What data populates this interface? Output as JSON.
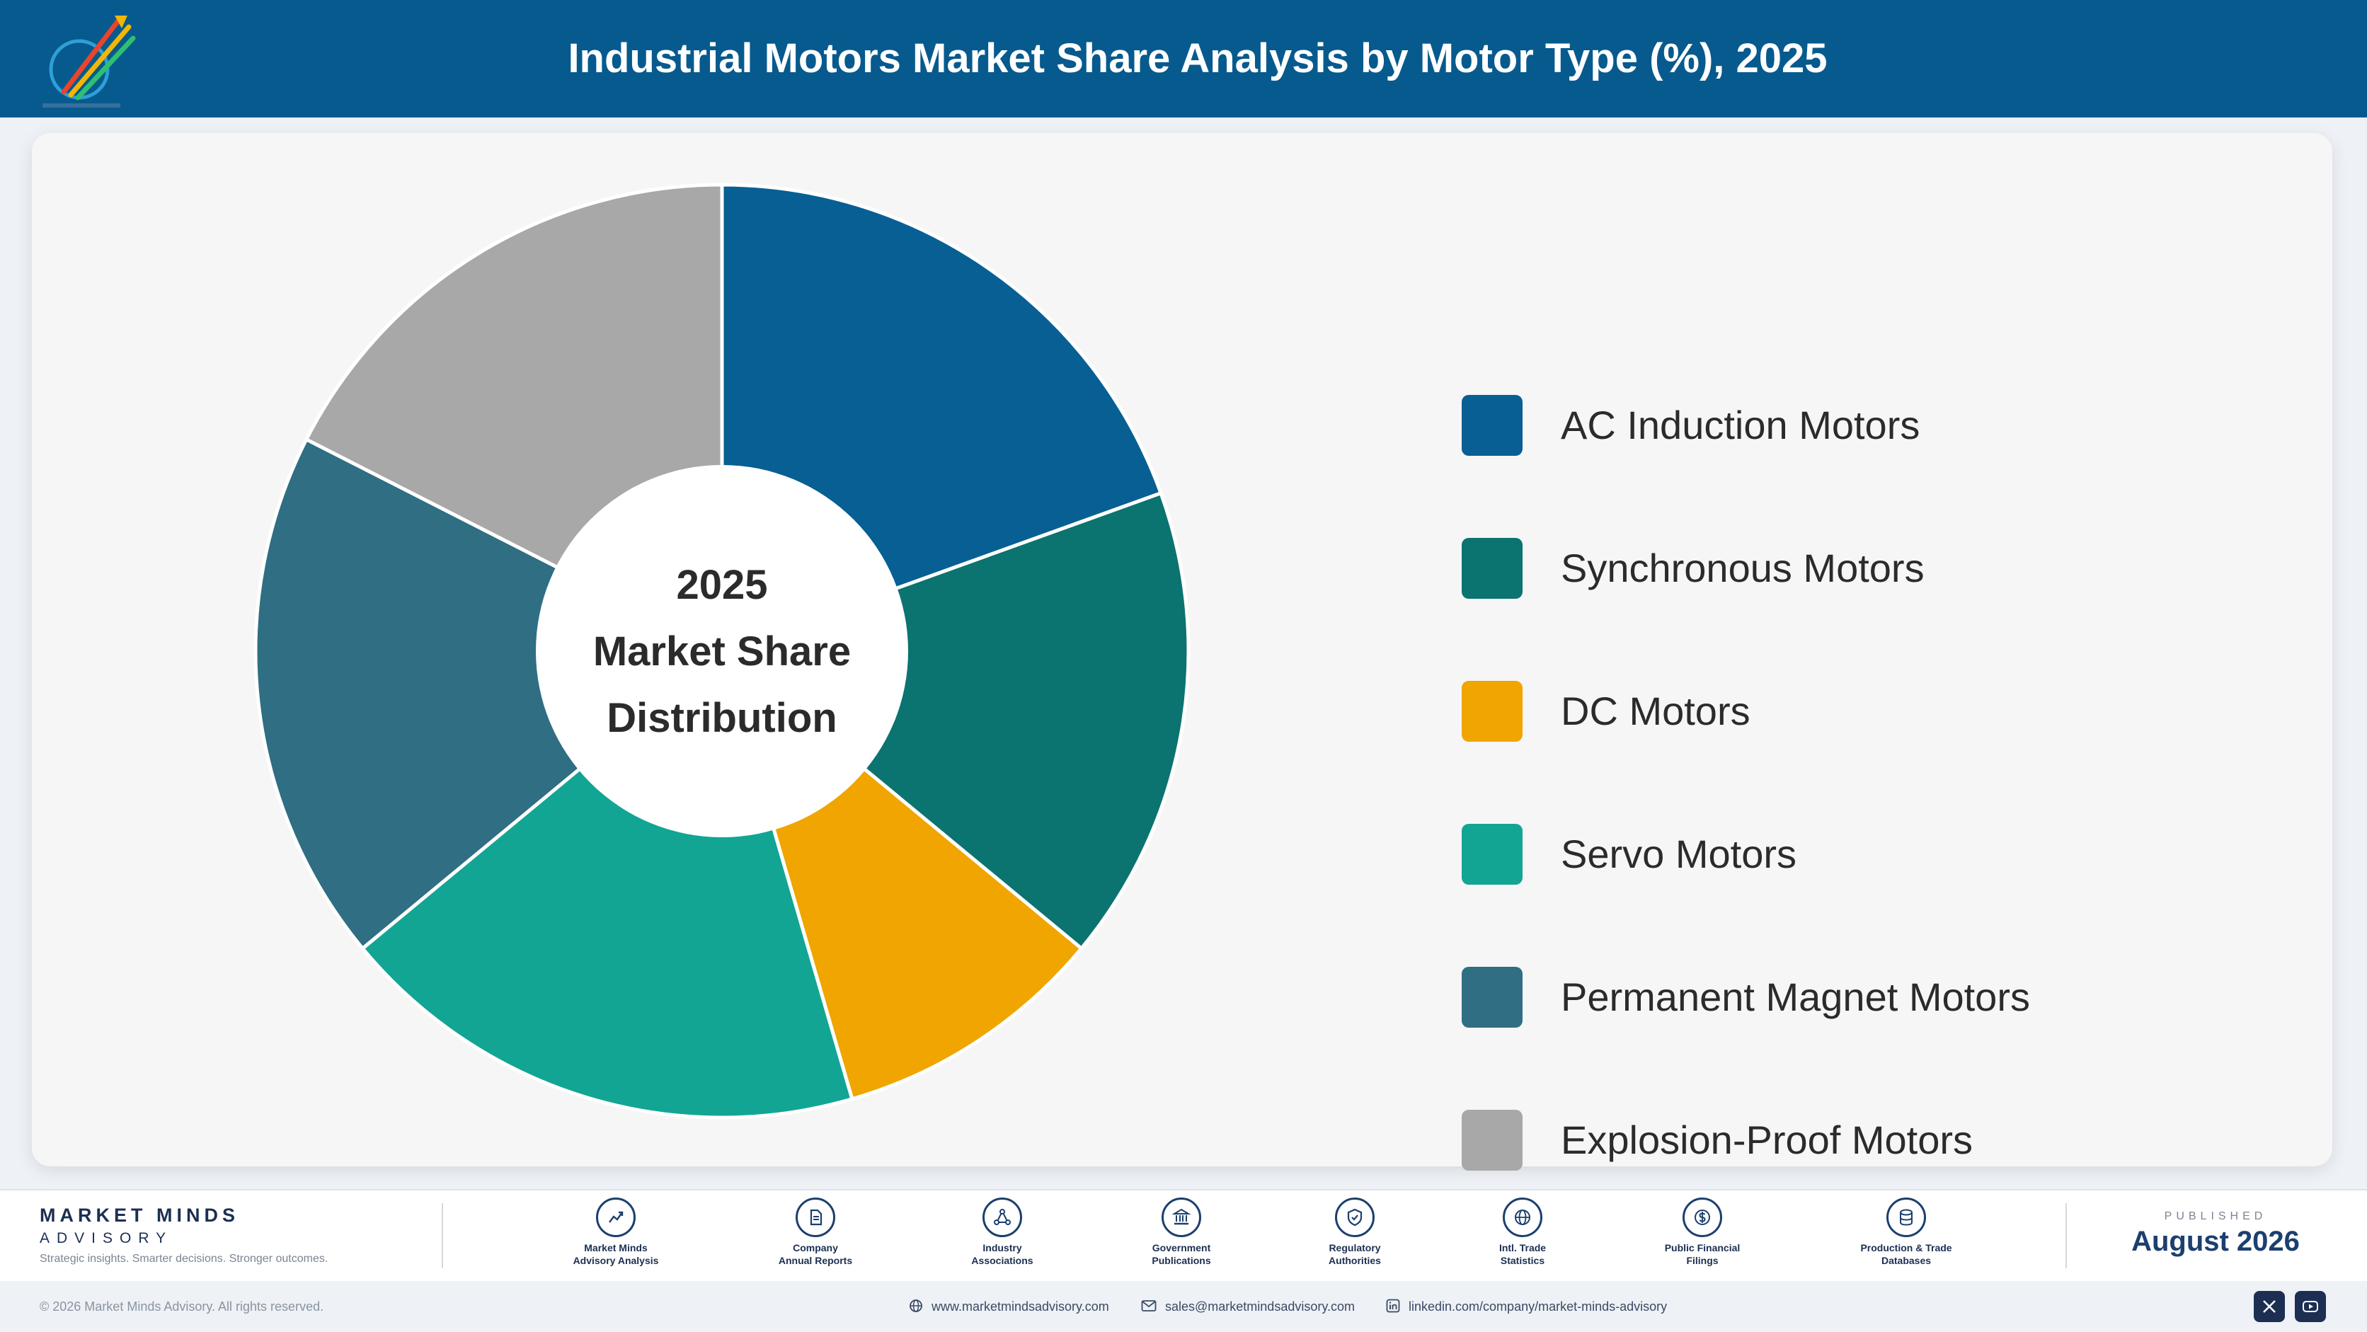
{
  "header": {
    "title": "Industrial Motors Market Share Analysis by Motor Type (%), 2025",
    "logo_icon": "rising-arrows-logo-icon"
  },
  "chart_data": {
    "type": "pie",
    "donut": true,
    "center_label": [
      "2025",
      "Market Share",
      "Distribution"
    ],
    "categories": [
      "AC Induction Motors",
      "Synchronous Motors",
      "DC Motors",
      "Servo Motors",
      "Permanent Magnet Motors",
      "Explosion-Proof Motors"
    ],
    "values": [
      19.5,
      16.5,
      9.5,
      18.5,
      18.5,
      17.5
    ],
    "colors": [
      "#075f94",
      "#0b7370",
      "#f0a500",
      "#12a594",
      "#2f6e83",
      "#a8a8a8"
    ],
    "legend_position": "right"
  },
  "footer": {
    "brand_name": "MARKET MINDS",
    "brand_sub": "ADVISORY",
    "tagline": "Strategic insights. Smarter decisions. Stronger outcomes.",
    "sources": [
      {
        "label": "Market Minds\nAdvisory Analysis",
        "icon": "trend-chart-icon"
      },
      {
        "label": "Company\nAnnual Reports",
        "icon": "document-icon"
      },
      {
        "label": "Industry\nAssociations",
        "icon": "network-icon"
      },
      {
        "label": "Government\nPublications",
        "icon": "government-building-icon"
      },
      {
        "label": "Regulatory\nAuthorities",
        "icon": "shield-check-icon"
      },
      {
        "label": "Intl. Trade\nStatistics",
        "icon": "globe-icon"
      },
      {
        "label": "Public Financial\nFilings",
        "icon": "currency-icon"
      },
      {
        "label": "Production & Trade\nDatabases",
        "icon": "database-icon"
      }
    ],
    "published_label": "PUBLISHED",
    "published_date": "August 2026"
  },
  "bottom_bar": {
    "copyright": "© 2026 Market Minds Advisory. All rights reserved.",
    "website": "www.marketmindsadvisory.com",
    "email": "sales@marketmindsadvisory.com",
    "linkedin": "linkedin.com/company/market-minds-advisory",
    "social": [
      "x-icon",
      "youtube-icon"
    ]
  }
}
